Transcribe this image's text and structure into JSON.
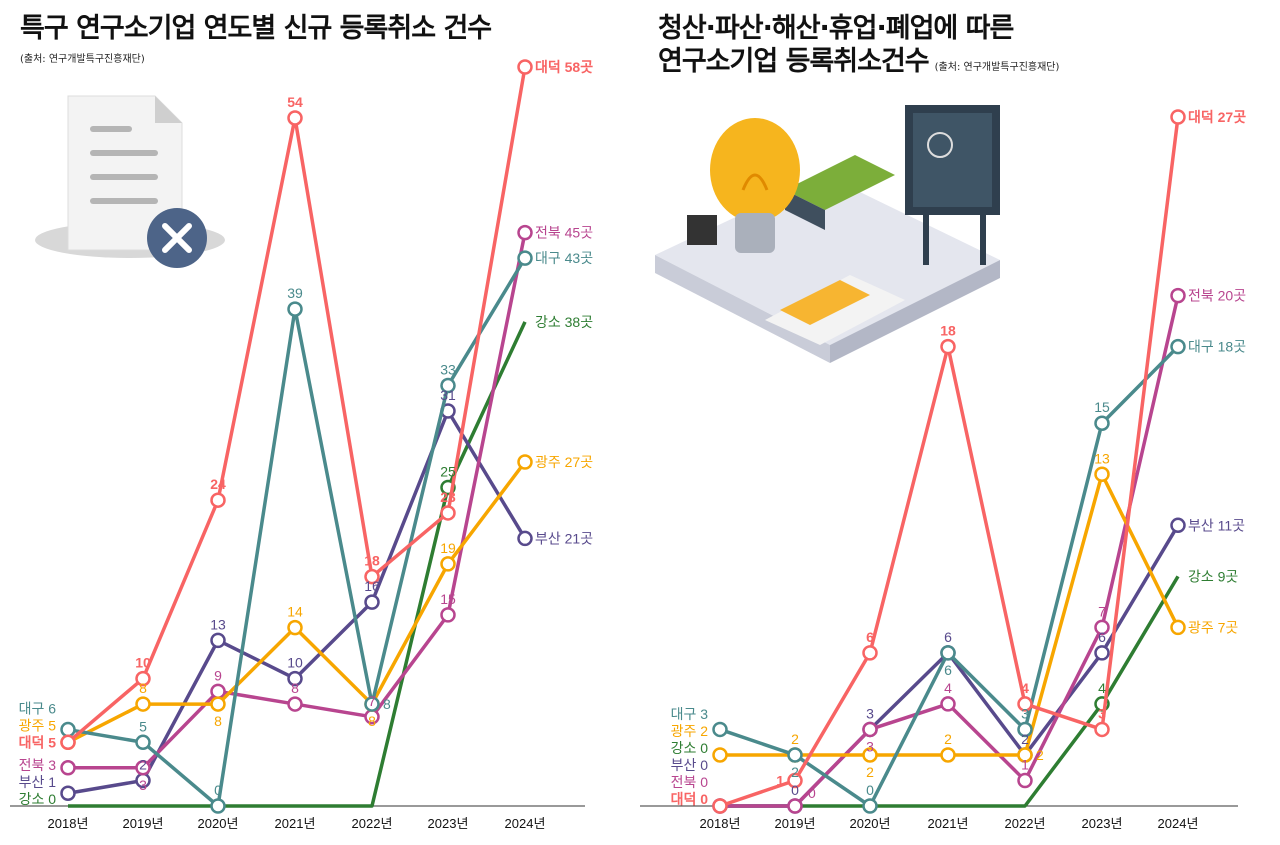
{
  "chart_data": [
    {
      "type": "line",
      "title_line1": "특구 연구소기업 연도별 신규 등록취소 건수",
      "source": "(출처: 연구개발특구진흥재단)",
      "categories": [
        "2018년",
        "2019년",
        "2020년",
        "2021년",
        "2022년",
        "2023년",
        "2024년"
      ],
      "unit_suffix": "곳",
      "ylim": [
        0,
        58
      ],
      "grid": false,
      "series": [
        {
          "name": "대덕",
          "color": "#f86464",
          "values": [
            5,
            10,
            24,
            54,
            18,
            23,
            58
          ],
          "bold": true
        },
        {
          "name": "대구",
          "color": "#4a8a8c",
          "values": [
            6,
            5,
            0,
            39,
            8,
            33,
            43
          ]
        },
        {
          "name": "광주",
          "color": "#f7a600",
          "values": [
            5,
            8,
            8,
            14,
            8,
            19,
            27
          ]
        },
        {
          "name": "전북",
          "color": "#b8458f",
          "values": [
            3,
            3,
            9,
            8,
            7,
            15,
            45
          ]
        },
        {
          "name": "부산",
          "color": "#584a8c",
          "values": [
            1,
            2,
            13,
            10,
            16,
            31,
            21
          ]
        },
        {
          "name": "강소",
          "color": "#2e7d32",
          "values": [
            0,
            0,
            0,
            0,
            0,
            25,
            38
          ]
        }
      ]
    },
    {
      "type": "line",
      "title_line1": "청산·파산·해산·휴업·폐업에 따른",
      "title_line2": "연구소기업 등록취소건수",
      "source": "(출처: 연구개발특구진흥재단)",
      "categories": [
        "2018년",
        "2019년",
        "2020년",
        "2021년",
        "2022년",
        "2023년",
        "2024년"
      ],
      "unit_suffix": "곳",
      "ylim": [
        0,
        27
      ],
      "grid": false,
      "series": [
        {
          "name": "대덕",
          "color": "#f86464",
          "values": [
            0,
            1,
            6,
            18,
            4,
            3,
            27
          ],
          "bold": true
        },
        {
          "name": "대구",
          "color": "#4a8a8c",
          "values": [
            3,
            2,
            0,
            6,
            3,
            15,
            18
          ]
        },
        {
          "name": "광주",
          "color": "#f7a600",
          "values": [
            2,
            2,
            2,
            2,
            2,
            13,
            7
          ]
        },
        {
          "name": "전북",
          "color": "#b8458f",
          "values": [
            0,
            0,
            3,
            4,
            1,
            7,
            20
          ]
        },
        {
          "name": "부산",
          "color": "#584a8c",
          "values": [
            0,
            0,
            3,
            6,
            2,
            6,
            11
          ]
        },
        {
          "name": "강소",
          "color": "#2e7d32",
          "values": [
            0,
            0,
            0,
            0,
            0,
            4,
            9
          ]
        }
      ]
    }
  ]
}
